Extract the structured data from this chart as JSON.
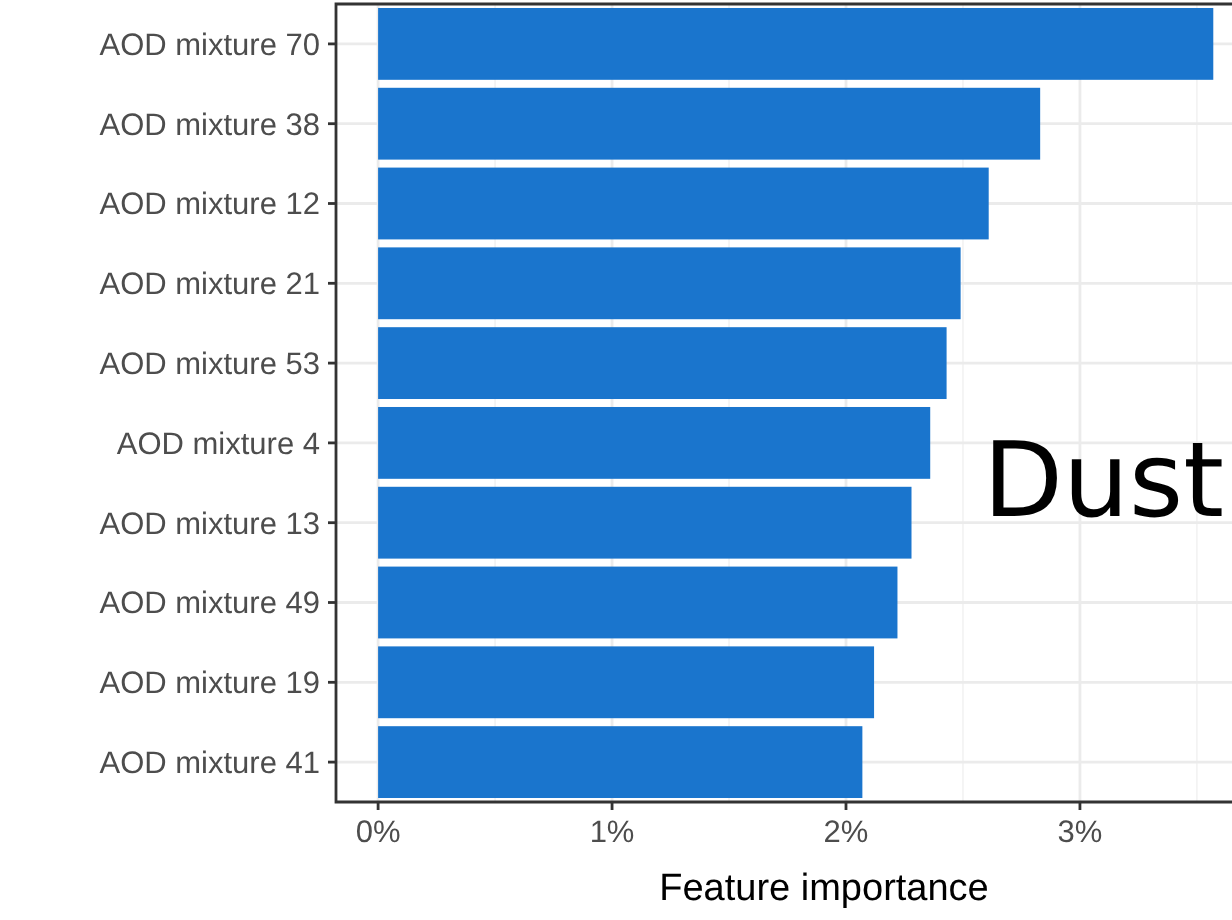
{
  "chart_data": {
    "type": "bar",
    "orientation": "horizontal",
    "xlabel": "Feature importance",
    "categories": [
      "AOD mixture 70",
      "AOD mixture 38",
      "AOD mixture 12",
      "AOD mixture 21",
      "AOD mixture 53",
      "AOD mixture 4",
      "AOD mixture 13",
      "AOD mixture 49",
      "AOD mixture 19",
      "AOD mixture 41"
    ],
    "values": [
      3.57,
      2.83,
      2.61,
      2.49,
      2.43,
      2.36,
      2.28,
      2.22,
      2.12,
      2.07
    ],
    "color": "#1a75cd",
    "xlim": [
      -0.18,
      3.65
    ],
    "xticks": [
      {
        "value": 0,
        "label": "0%"
      },
      {
        "value": 1,
        "label": "1%"
      },
      {
        "value": 2,
        "label": "2%"
      },
      {
        "value": 3,
        "label": "3%"
      }
    ],
    "grid": true,
    "annotations": [
      "Dust"
    ]
  }
}
